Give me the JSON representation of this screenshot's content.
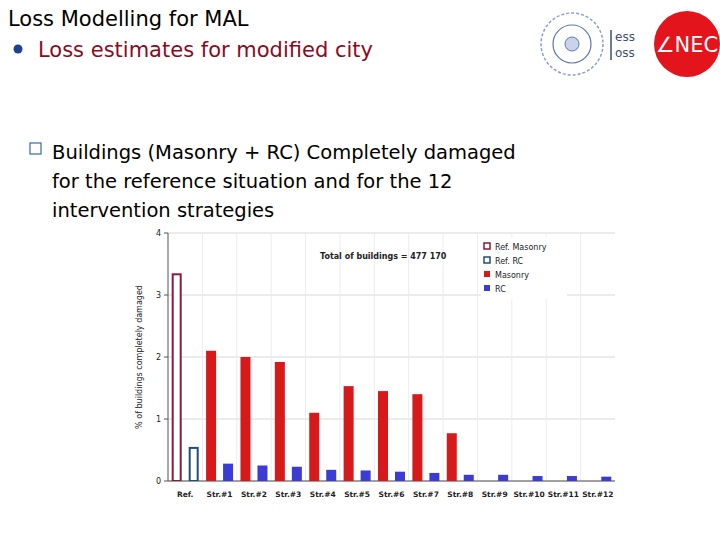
{
  "slide": {
    "title": "Loss Modelling for MAL",
    "bullet": "Loss estimates for modified city",
    "sub_bullet_lines": [
      "Buildings (Masonry + RC) Completely damaged",
      "for the reference situation and for the 12",
      "intervention strategies"
    ],
    "logo_left": [
      "ess",
      "oss"
    ],
    "logo_right": "∠NEC"
  },
  "chart_data": {
    "type": "bar",
    "y_label": "% of buildings completely damaged",
    "annotations": [
      "Total of buildings = 477 170"
    ],
    "categories": [
      "Ref.",
      "Str.#1",
      "Str.#2",
      "Str.#3",
      "Str.#4",
      "Str.#5",
      "Str.#6",
      "Str.#7",
      "Str.#8",
      "Str.#9",
      "Str.#10",
      "Str.#11",
      "Str.#12"
    ],
    "series": [
      {
        "name": "Ref. Masonry",
        "type": "hollow_bar",
        "color": "#8b1a3a",
        "values": [
          3.35,
          null,
          null,
          null,
          null,
          null,
          null,
          null,
          null,
          null,
          null,
          null,
          null
        ]
      },
      {
        "name": "Ref. RC",
        "type": "hollow_bar",
        "color": "#1f4e79",
        "values": [
          0.55,
          null,
          null,
          null,
          null,
          null,
          null,
          null,
          null,
          null,
          null,
          null,
          null
        ]
      },
      {
        "name": "Masonry",
        "type": "bar",
        "color": "#d7191c",
        "values": [
          null,
          2.1,
          2.0,
          1.92,
          1.1,
          1.53,
          1.45,
          1.4,
          0.77,
          0,
          0,
          0,
          0
        ]
      },
      {
        "name": "RC",
        "type": "bar",
        "color": "#3b3bd6",
        "values": [
          null,
          0.28,
          0.25,
          0.23,
          0.18,
          0.17,
          0.15,
          0.13,
          0.1,
          0.1,
          0.08,
          0.08,
          0.07
        ]
      }
    ],
    "ylim": [
      0,
      4
    ],
    "yticks": [
      0,
      1,
      2,
      3,
      4
    ],
    "grid": true,
    "legend": "upper right"
  }
}
